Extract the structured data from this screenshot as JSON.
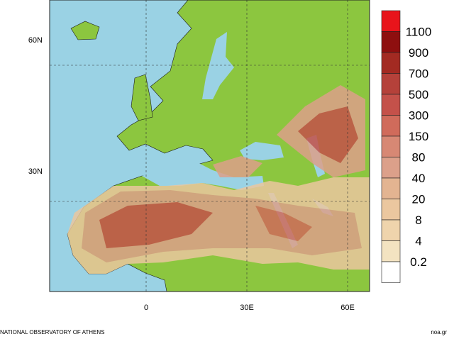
{
  "map": {
    "lat_labels": [
      "60N",
      "30N"
    ],
    "lon_labels": [
      "0",
      "30E",
      "60E"
    ],
    "colorbar": {
      "colors": [
        "#e8141b",
        "#8e0f0f",
        "#a32a22",
        "#b5413a",
        "#c4514a",
        "#d06b5b",
        "#d78874",
        "#dca08a",
        "#e3b491",
        "#ebc79f",
        "#efd4ac",
        "#f3e3c1",
        "#ffffff"
      ],
      "labels": [
        1100,
        900,
        700,
        500,
        300,
        150,
        80,
        40,
        20,
        8,
        4,
        0.2
      ]
    }
  },
  "footer": {
    "left": "NATIONAL OBSERVATORY OF ATHENS",
    "right": "noa.gr"
  }
}
